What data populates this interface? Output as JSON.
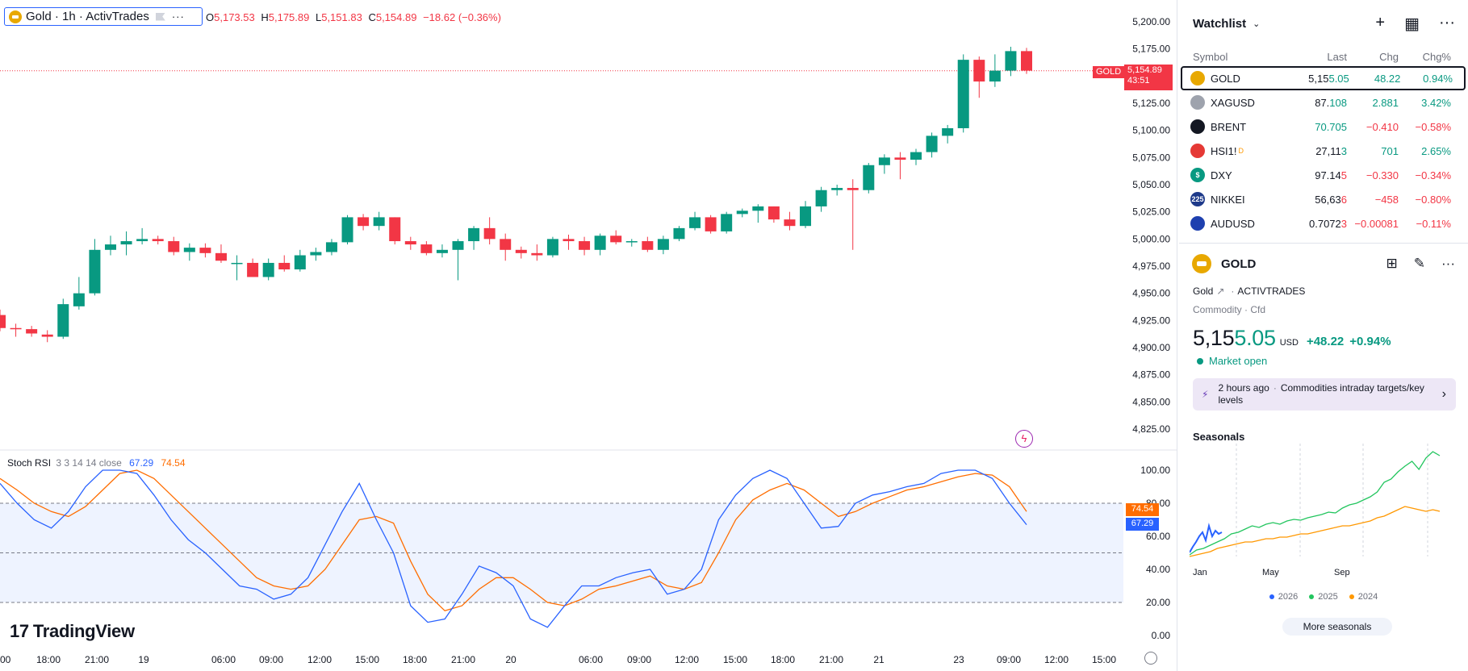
{
  "legend": {
    "title": "Gold · 1h · ActivTrades",
    "more": "···",
    "ohlc": {
      "o_label": "O",
      "o": "5,173.53",
      "h_label": "H",
      "h": "5,175.89",
      "l_label": "L",
      "l": "5,151.83",
      "c_label": "C",
      "c": "5,154.89",
      "change": "−18.62 (−0.36%)"
    }
  },
  "price_axis": {
    "labels": [
      "5,200.00",
      "5,175.00",
      "5,150.00",
      "5,125.00",
      "5,100.00",
      "5,075.00",
      "5,050.00",
      "5,025.00",
      "5,000.00",
      "4,975.00",
      "4,950.00",
      "4,925.00",
      "4,900.00",
      "4,875.00",
      "4,850.00",
      "4,825.00"
    ],
    "last_price_label": "GOLD",
    "last_price": "5,154.89",
    "countdown": "43:51"
  },
  "time_axis": {
    "labels": [
      "00",
      "18:00",
      "21:00",
      "19",
      "06:00",
      "09:00",
      "12:00",
      "15:00",
      "18:00",
      "21:00",
      "20",
      "06:00",
      "09:00",
      "12:00",
      "15:00",
      "18:00",
      "21:00",
      "21",
      "23",
      "09:00",
      "12:00",
      "15:00"
    ]
  },
  "stoch": {
    "name": "Stoch RSI",
    "params": "3 3 14 14 close",
    "k_value": "67.29",
    "d_value": "74.54",
    "axis_labels": [
      "100.00",
      "80.00",
      "60.00",
      "40.00",
      "20.00",
      "0.00"
    ],
    "k_color": "#2962ff",
    "d_color": "#ff6d00",
    "upper_band": 80,
    "lower_band": 20,
    "mid_line": 50
  },
  "branding": {
    "text": "TradingView",
    "mark": "17"
  },
  "chart_data": {
    "type": "candlestick",
    "symbol": "GOLD",
    "timeframe": "1h",
    "ylim": [
      4800,
      5212
    ],
    "up_color": "#089981",
    "down_color": "#f23645",
    "candles": [
      [
        4930,
        4935,
        4915,
        4918
      ],
      [
        4918,
        4922,
        4910,
        4917
      ],
      [
        4917,
        4920,
        4910,
        4913
      ],
      [
        4912,
        4916,
        4905,
        4910
      ],
      [
        4910,
        4945,
        4908,
        4940
      ],
      [
        4938,
        4965,
        4935,
        4950
      ],
      [
        4950,
        5000,
        4948,
        4990
      ],
      [
        4990,
        5003,
        4985,
        4995
      ],
      [
        4995,
        5007,
        4985,
        4998
      ],
      [
        4998,
        5010,
        4995,
        5000
      ],
      [
        5000,
        5003,
        4995,
        4998
      ],
      [
        4998,
        5002,
        4985,
        4988
      ],
      [
        4988,
        4996,
        4980,
        4992
      ],
      [
        4992,
        4996,
        4983,
        4987
      ],
      [
        4987,
        4995,
        4978,
        4980
      ],
      [
        4978,
        4985,
        4962,
        4978
      ],
      [
        4978,
        4982,
        4965,
        4965
      ],
      [
        4965,
        4982,
        4962,
        4978
      ],
      [
        4978,
        4985,
        4970,
        4972
      ],
      [
        4972,
        4990,
        4970,
        4985
      ],
      [
        4985,
        4992,
        4980,
        4988
      ],
      [
        4988,
        5000,
        4985,
        4997
      ],
      [
        4997,
        5022,
        4995,
        5020
      ],
      [
        5020,
        5023,
        5008,
        5012
      ],
      [
        5012,
        5025,
        5008,
        5020
      ],
      [
        5020,
        5020,
        4995,
        4998
      ],
      [
        4998,
        5002,
        4990,
        4995
      ],
      [
        4995,
        4998,
        4985,
        4987
      ],
      [
        4987,
        4995,
        4983,
        4990
      ],
      [
        4990,
        5000,
        4962,
        4998
      ],
      [
        4998,
        5012,
        4990,
        5010
      ],
      [
        5010,
        5020,
        4995,
        5000
      ],
      [
        5000,
        5005,
        4980,
        4990
      ],
      [
        4990,
        4993,
        4982,
        4987
      ],
      [
        4987,
        4995,
        4980,
        4985
      ],
      [
        4985,
        5002,
        4983,
        5000
      ],
      [
        5000,
        5004,
        4990,
        4998
      ],
      [
        4998,
        5002,
        4985,
        4990
      ],
      [
        4990,
        5005,
        4985,
        5003
      ],
      [
        5003,
        5008,
        4995,
        4997
      ],
      [
        4997,
        5000,
        4993,
        4998
      ],
      [
        4998,
        5002,
        4988,
        4990
      ],
      [
        4990,
        5003,
        4986,
        5000
      ],
      [
        5000,
        5012,
        4998,
        5010
      ],
      [
        5010,
        5025,
        5008,
        5020
      ],
      [
        5020,
        5022,
        5005,
        5007
      ],
      [
        5007,
        5025,
        5005,
        5023
      ],
      [
        5023,
        5028,
        5020,
        5026
      ],
      [
        5026,
        5032,
        5015,
        5030
      ],
      [
        5030,
        5030,
        5015,
        5018
      ],
      [
        5018,
        5025,
        5008,
        5012
      ],
      [
        5012,
        5035,
        5010,
        5030
      ],
      [
        5030,
        5048,
        5025,
        5045
      ],
      [
        5045,
        5050,
        5040,
        5047
      ],
      [
        5047,
        5055,
        4990,
        5045
      ],
      [
        5045,
        5070,
        5042,
        5068
      ],
      [
        5068,
        5078,
        5060,
        5075
      ],
      [
        5075,
        5080,
        5055,
        5073
      ],
      [
        5073,
        5083,
        5068,
        5080
      ],
      [
        5080,
        5098,
        5075,
        5095
      ],
      [
        5095,
        5105,
        5088,
        5102
      ],
      [
        5102,
        5170,
        5098,
        5165
      ],
      [
        5165,
        5168,
        5130,
        5145
      ],
      [
        5145,
        5170,
        5140,
        5155
      ],
      [
        5155,
        5177,
        5150,
        5173
      ],
      [
        5173,
        5176,
        5152,
        5155
      ]
    ]
  },
  "watchlist": {
    "title": "Watchlist",
    "columns": {
      "symbol": "Symbol",
      "last": "Last",
      "chg": "Chg",
      "chg_pct": "Chg%"
    },
    "rows": [
      {
        "symbol": "GOLD",
        "last_a": "5,15",
        "last_b": "5.05",
        "chg": "48.22",
        "pct": "0.94%",
        "dir": "up",
        "logo_color": "#e8a800",
        "logo_text": "",
        "selected": true
      },
      {
        "symbol": "XAGUSD",
        "last_a": "87.",
        "last_b": "108",
        "chg": "2.881",
        "pct": "3.42%",
        "dir": "up",
        "logo_color": "#9ea3ad",
        "logo_text": ""
      },
      {
        "symbol": "BRENT",
        "last_a": "70.705",
        "last_b": "",
        "chg": "−0.410",
        "pct": "−0.58%",
        "dir": "down",
        "logo_color": "#131722",
        "logo_text": "",
        "last_color": "up"
      },
      {
        "symbol": "HSI1!",
        "sup": "D",
        "last_a": "27,11",
        "last_b": "3",
        "chg": "701",
        "pct": "2.65%",
        "dir": "up",
        "logo_color": "#e53935",
        "logo_text": ""
      },
      {
        "symbol": "DXY",
        "last_a": "97.14",
        "last_b": "5",
        "chg": "−0.330",
        "pct": "−0.34%",
        "dir": "down",
        "logo_color": "#089981",
        "logo_text": "$"
      },
      {
        "symbol": "NIKKEI",
        "last_a": "56,63",
        "last_b": "6",
        "chg": "−458",
        "pct": "−0.80%",
        "dir": "down",
        "logo_color": "#1e3a8a",
        "logo_text": "225"
      },
      {
        "symbol": "AUDUSD",
        "last_a": "0.7072",
        "last_b": "3",
        "chg": "−0.00081",
        "pct": "−0.11%",
        "dir": "down",
        "logo_color": "#1e40af",
        "logo_text": ""
      }
    ]
  },
  "details": {
    "symbol": "GOLD",
    "name": "Gold",
    "exchange": "ACTIVTRADES",
    "type_line": "Commodity · Cfd",
    "price_a": "5,15",
    "price_b": "5.05",
    "currency": "USD",
    "change": "+48.22",
    "change_pct": "+0.94%",
    "market_status": "Market open",
    "news_time": "2 hours ago",
    "news_sep": "·",
    "news_text": "Commodities intraday targets/key levels"
  },
  "seasonals": {
    "title": "Seasonals",
    "months": [
      "Jan",
      "May",
      "Sep"
    ],
    "legend": [
      {
        "label": "2026",
        "color": "#2962ff"
      },
      {
        "label": "2025",
        "color": "#22c55e"
      },
      {
        "label": "2024",
        "color": "#ff9800"
      }
    ],
    "more_label": "More seasonals"
  }
}
